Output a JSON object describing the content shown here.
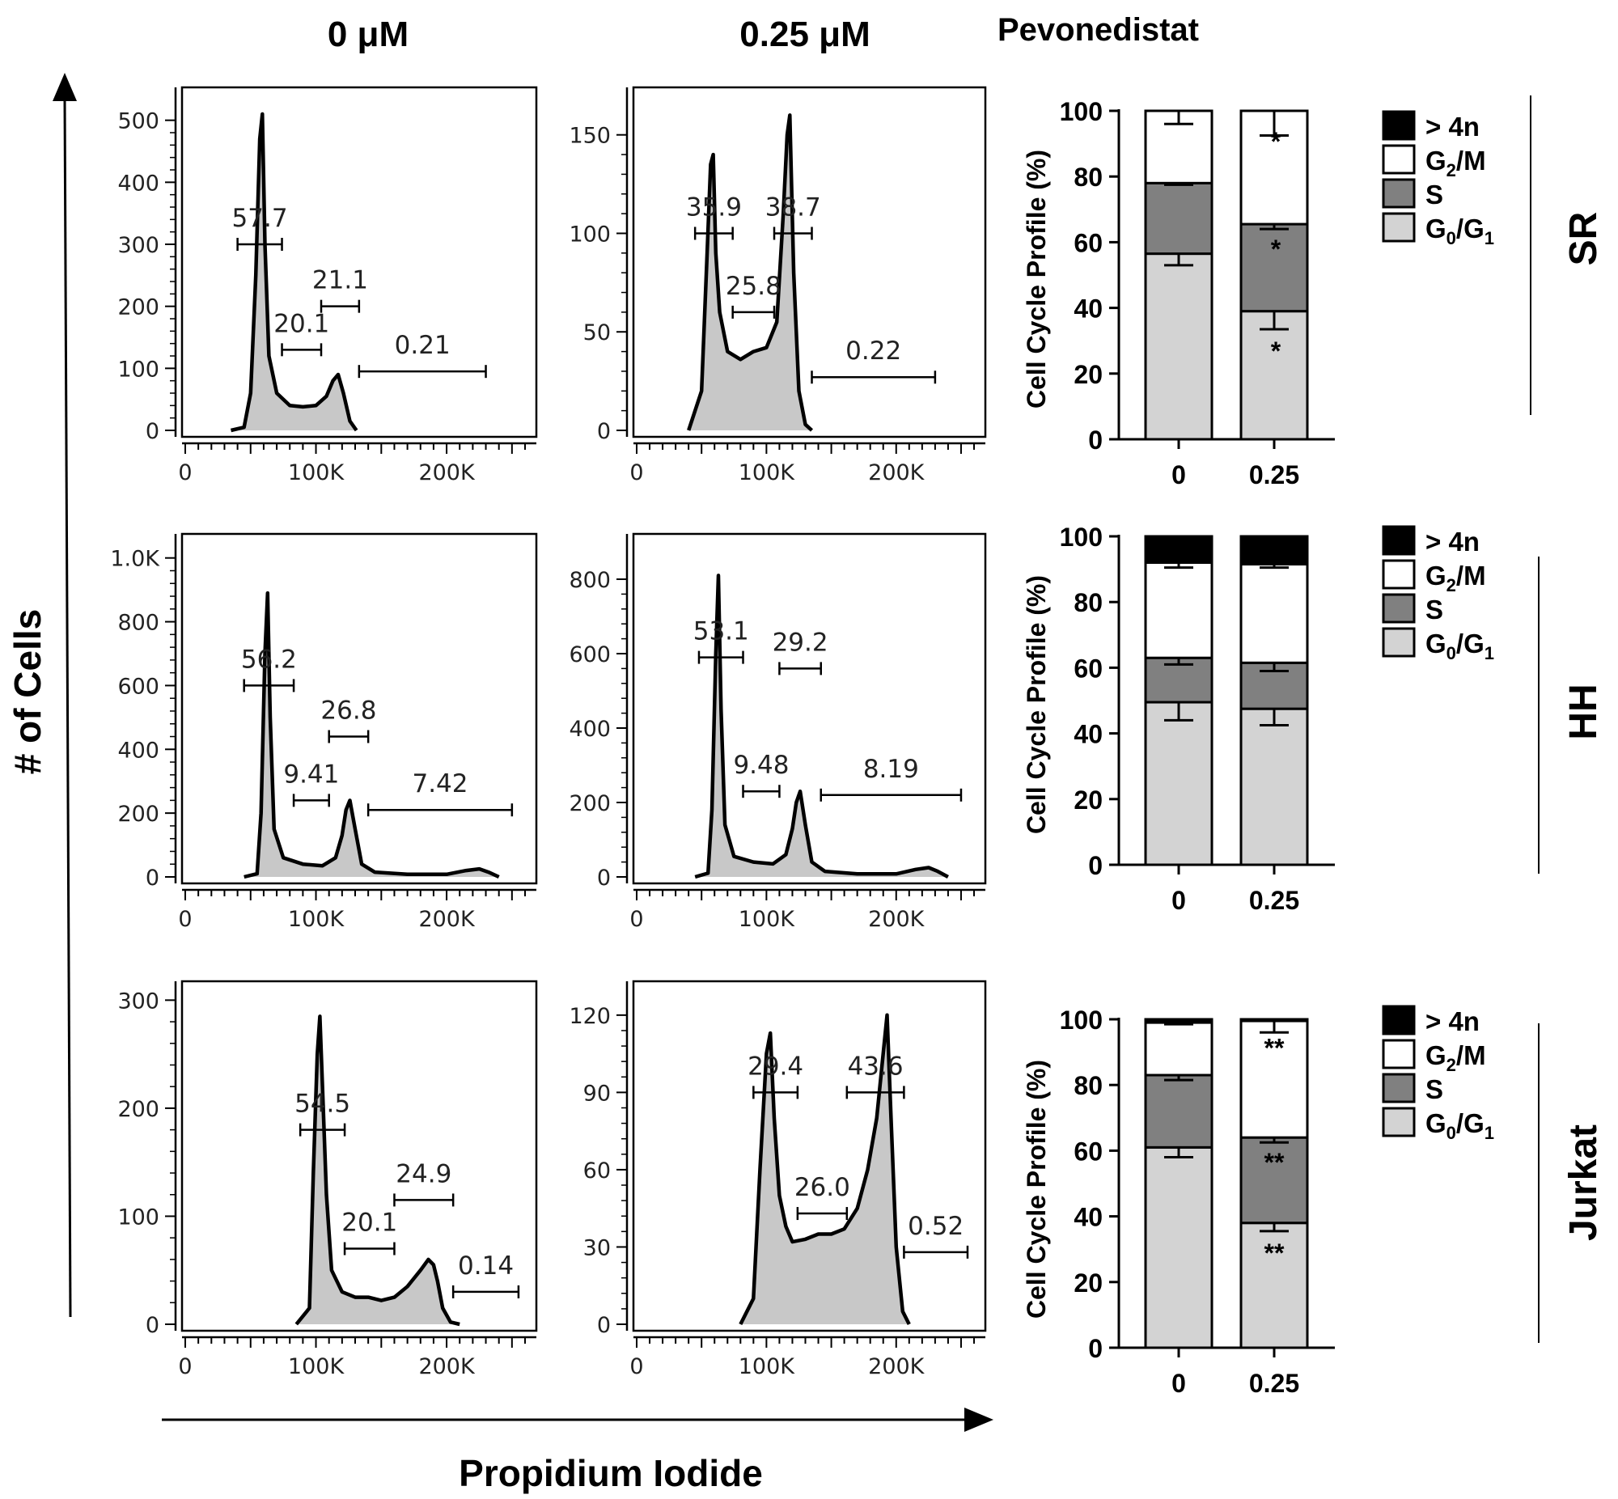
{
  "figure": {
    "col_headers": [
      "0 μM",
      "0.25 μM"
    ],
    "drug_label": "Pevonedistat",
    "y_axis_label": "# of Cells",
    "x_axis_label": "Propidium Iodide",
    "cell_lines": [
      "SR",
      "HH",
      "Jurkat"
    ]
  },
  "colors": {
    "histogram_fill": "#c8c8c8",
    "peak_highlight": "#e2e2e2",
    "gt4n": "#000000",
    "g2m": "#ffffff",
    "s": "#808080",
    "g0g1": "#d3d3d3"
  },
  "legend": {
    "items": [
      {
        "label": "> 4n",
        "color": "#000000"
      },
      {
        "label": "G2/M",
        "main": "G",
        "sub": "2",
        "rest": "/M",
        "color": "#ffffff"
      },
      {
        "label": "S",
        "color": "#808080"
      },
      {
        "label": "G0/G1",
        "main": "G",
        "sub": "0",
        "rest": "/G",
        "sub2": "1",
        "color": "#d3d3d3"
      }
    ]
  },
  "chart_data": [
    {
      "type": "area",
      "panel": "SR 0 μM",
      "xlabel": "",
      "ylabel": "",
      "xlim": [
        0,
        260000
      ],
      "ylim": [
        0,
        540
      ],
      "xticks": [
        "0",
        "100K",
        "200K"
      ],
      "yticks": [
        "0",
        "100",
        "200",
        "300",
        "400",
        "500"
      ],
      "x": [
        35000,
        45000,
        50000,
        54000,
        57000,
        59000,
        61000,
        64000,
        70000,
        80000,
        90000,
        100000,
        108000,
        113000,
        117000,
        121000,
        126000,
        131000
      ],
      "y": [
        0,
        5,
        60,
        250,
        470,
        510,
        300,
        120,
        60,
        40,
        38,
        40,
        55,
        80,
        90,
        60,
        15,
        0
      ],
      "gates": [
        {
          "label": "57.7",
          "pct": 57.7,
          "range": [
            40000,
            74000
          ],
          "y": 300
        },
        {
          "label": "20.1",
          "pct": 20.1,
          "range": [
            74000,
            104000
          ],
          "y": 130
        },
        {
          "label": "21.1",
          "pct": 21.1,
          "range": [
            104000,
            133000
          ],
          "y": 200
        },
        {
          "label": "0.21",
          "pct": 0.21,
          "range": [
            133000,
            230000
          ],
          "y": 95
        }
      ]
    },
    {
      "type": "area",
      "panel": "SR 0.25 μM",
      "xlabel": "",
      "ylabel": "",
      "xlim": [
        0,
        260000
      ],
      "ylim": [
        0,
        170
      ],
      "xticks": [
        "0",
        "100K",
        "200K"
      ],
      "yticks": [
        "0",
        "50",
        "100",
        "150"
      ],
      "x": [
        40000,
        50000,
        54000,
        57000,
        59000,
        61000,
        64000,
        70000,
        80000,
        90000,
        100000,
        108000,
        113000,
        116000,
        118000,
        121000,
        125000,
        130000,
        135000
      ],
      "y": [
        0,
        20,
        85,
        135,
        140,
        90,
        60,
        40,
        36,
        40,
        42,
        55,
        110,
        150,
        160,
        80,
        20,
        3,
        0
      ],
      "gates": [
        {
          "label": "35.9",
          "pct": 35.9,
          "range": [
            45000,
            74000
          ],
          "y": 100
        },
        {
          "label": "25.8",
          "pct": 25.8,
          "range": [
            74000,
            106000
          ],
          "y": 60
        },
        {
          "label": "38.7",
          "pct": 38.7,
          "range": [
            106000,
            135000
          ],
          "y": 100
        },
        {
          "label": "0.22",
          "pct": 0.22,
          "range": [
            135000,
            230000
          ],
          "y": 27
        }
      ]
    },
    {
      "type": "area",
      "panel": "HH 0 μM",
      "xlabel": "",
      "ylabel": "",
      "xlim": [
        0,
        260000
      ],
      "ylim": [
        0,
        1050
      ],
      "xticks": [
        "0",
        "100K",
        "200K"
      ],
      "yticks": [
        "0",
        "200",
        "400",
        "600",
        "800",
        "1.0K"
      ],
      "x": [
        45000,
        55000,
        58000,
        61000,
        63000,
        65000,
        68000,
        75000,
        90000,
        105000,
        115000,
        120000,
        123000,
        126000,
        130000,
        135000,
        145000,
        170000,
        200000,
        215000,
        225000,
        232000,
        240000
      ],
      "y": [
        0,
        10,
        200,
        700,
        890,
        500,
        150,
        60,
        40,
        35,
        60,
        130,
        210,
        240,
        150,
        40,
        15,
        8,
        8,
        20,
        25,
        15,
        0
      ],
      "gates": [
        {
          "label": "56.2",
          "pct": 56.2,
          "range": [
            45000,
            83000
          ],
          "y": 600
        },
        {
          "label": "9.41",
          "pct": 9.41,
          "range": [
            83000,
            110000
          ],
          "y": 240
        },
        {
          "label": "26.8",
          "pct": 26.8,
          "range": [
            110000,
            140000
          ],
          "y": 440
        },
        {
          "label": "7.42",
          "pct": 7.42,
          "range": [
            140000,
            250000
          ],
          "y": 210
        }
      ]
    },
    {
      "type": "area",
      "panel": "HH 0.25 μM",
      "xlabel": "",
      "ylabel": "",
      "xlim": [
        0,
        260000
      ],
      "ylim": [
        0,
        900
      ],
      "xticks": [
        "0",
        "100K",
        "200K"
      ],
      "yticks": [
        "0",
        "200",
        "400",
        "600",
        "800"
      ],
      "x": [
        45000,
        55000,
        58000,
        61000,
        63000,
        65000,
        68000,
        75000,
        90000,
        105000,
        115000,
        120000,
        123000,
        126000,
        130000,
        135000,
        145000,
        170000,
        200000,
        215000,
        225000,
        232000,
        240000
      ],
      "y": [
        0,
        10,
        180,
        600,
        810,
        450,
        140,
        55,
        40,
        35,
        60,
        130,
        200,
        230,
        140,
        40,
        15,
        8,
        8,
        20,
        25,
        15,
        0
      ],
      "gates": [
        {
          "label": "53.1",
          "pct": 53.1,
          "range": [
            48000,
            82000
          ],
          "y": 590
        },
        {
          "label": "9.48",
          "pct": 9.48,
          "range": [
            82000,
            110000
          ],
          "y": 230
        },
        {
          "label": "29.2",
          "pct": 29.2,
          "range": [
            110000,
            142000
          ],
          "y": 560
        },
        {
          "label": "8.19",
          "pct": 8.19,
          "range": [
            142000,
            250000
          ],
          "y": 220
        }
      ]
    },
    {
      "type": "area",
      "panel": "Jurkat 0 μM",
      "xlabel": "",
      "ylabel": "",
      "xlim": [
        0,
        260000
      ],
      "ylim": [
        0,
        310
      ],
      "xticks": [
        "0",
        "100K",
        "200K"
      ],
      "yticks": [
        "0",
        "100",
        "200",
        "300"
      ],
      "x": [
        85000,
        95000,
        98000,
        101000,
        103000,
        105000,
        108000,
        112000,
        120000,
        130000,
        140000,
        150000,
        160000,
        170000,
        180000,
        186000,
        190000,
        193000,
        197000,
        203000,
        210000
      ],
      "y": [
        0,
        15,
        140,
        250,
        285,
        220,
        120,
        50,
        30,
        25,
        25,
        22,
        25,
        35,
        50,
        60,
        55,
        40,
        15,
        2,
        0
      ],
      "gates": [
        {
          "label": "54.5",
          "pct": 54.5,
          "range": [
            88000,
            122000
          ],
          "y": 180
        },
        {
          "label": "20.1",
          "pct": 20.1,
          "range": [
            122000,
            160000
          ],
          "y": 70
        },
        {
          "label": "24.9",
          "pct": 24.9,
          "range": [
            160000,
            205000
          ],
          "y": 115
        },
        {
          "label": "0.14",
          "pct": 0.14,
          "range": [
            205000,
            255000
          ],
          "y": 30
        }
      ]
    },
    {
      "type": "area",
      "panel": "Jurkat 0.25 μM",
      "xlabel": "",
      "ylabel": "",
      "xlim": [
        0,
        260000
      ],
      "ylim": [
        0,
        130
      ],
      "xticks": [
        "0",
        "100K",
        "200K"
      ],
      "yticks": [
        "0",
        "30",
        "60",
        "90",
        "120"
      ],
      "x": [
        80000,
        90000,
        95000,
        100000,
        103000,
        106000,
        110000,
        115000,
        120000,
        130000,
        140000,
        150000,
        160000,
        170000,
        178000,
        185000,
        190000,
        193000,
        196000,
        200000,
        205000,
        210000
      ],
      "y": [
        0,
        10,
        60,
        105,
        113,
        80,
        50,
        38,
        32,
        33,
        35,
        35,
        37,
        45,
        60,
        80,
        105,
        120,
        80,
        30,
        5,
        0
      ],
      "gates": [
        {
          "label": "29.4",
          "pct": 29.4,
          "range": [
            90000,
            124000
          ],
          "y": 90
        },
        {
          "label": "26.0",
          "pct": 26.0,
          "range": [
            124000,
            162000
          ],
          "y": 43
        },
        {
          "label": "43.6",
          "pct": 43.6,
          "range": [
            162000,
            206000
          ],
          "y": 90
        },
        {
          "label": "0.52",
          "pct": 0.52,
          "range": [
            206000,
            255000
          ],
          "y": 28
        }
      ]
    },
    {
      "type": "bar",
      "stacked": true,
      "panel": "SR bar",
      "categories": [
        "0",
        "0.25"
      ],
      "ylabel": "Cell Cycle Profile (%)",
      "ylim": [
        0,
        100
      ],
      "yticks": [
        "0",
        "20",
        "40",
        "60",
        "80",
        "100"
      ],
      "series": [
        {
          "name": "G0/G1",
          "values": [
            56.5,
            39
          ],
          "errors": [
            3.5,
            5.5
          ]
        },
        {
          "name": "S",
          "values": [
            21.5,
            26.5
          ],
          "errors": [
            0.5,
            1.5
          ]
        },
        {
          "name": "G2/M",
          "values": [
            22,
            34.5
          ],
          "errors": [
            4,
            7.5
          ]
        },
        {
          "name": "> 4n",
          "values": [
            0,
            0
          ]
        }
      ],
      "annotations": [
        "",
        "*"
      ]
    },
    {
      "type": "bar",
      "stacked": true,
      "panel": "HH bar",
      "categories": [
        "0",
        "0.25"
      ],
      "ylabel": "Cell Cycle Profile (%)",
      "ylim": [
        0,
        100
      ],
      "yticks": [
        "0",
        "20",
        "40",
        "60",
        "80",
        "100"
      ],
      "series": [
        {
          "name": "G0/G1",
          "values": [
            49.5,
            47.5
          ],
          "errors": [
            5.5,
            5
          ]
        },
        {
          "name": "S",
          "values": [
            13.5,
            14
          ],
          "errors": [
            2,
            2.5
          ]
        },
        {
          "name": "G2/M",
          "values": [
            29,
            30
          ],
          "errors": [
            1.5,
            1
          ]
        },
        {
          "name": "> 4n",
          "values": [
            8,
            8.5
          ]
        }
      ],
      "annotations": [
        "",
        ""
      ]
    },
    {
      "type": "bar",
      "stacked": true,
      "panel": "Jurkat bar",
      "categories": [
        "0",
        "0.25"
      ],
      "ylabel": "Cell Cycle Profile (%)",
      "ylim": [
        0,
        100
      ],
      "yticks": [
        "0",
        "20",
        "40",
        "60",
        "80",
        "100"
      ],
      "series": [
        {
          "name": "G0/G1",
          "values": [
            61,
            38
          ],
          "errors": [
            3,
            2.5
          ]
        },
        {
          "name": "S",
          "values": [
            22,
            26
          ],
          "errors": [
            1.5,
            1.5
          ]
        },
        {
          "name": "G2/M",
          "values": [
            16,
            35.5
          ],
          "errors": [
            0.5,
            3.5
          ]
        },
        {
          "name": "> 4n",
          "values": [
            1,
            0.5
          ]
        }
      ],
      "annotations": [
        "",
        "**"
      ]
    }
  ]
}
